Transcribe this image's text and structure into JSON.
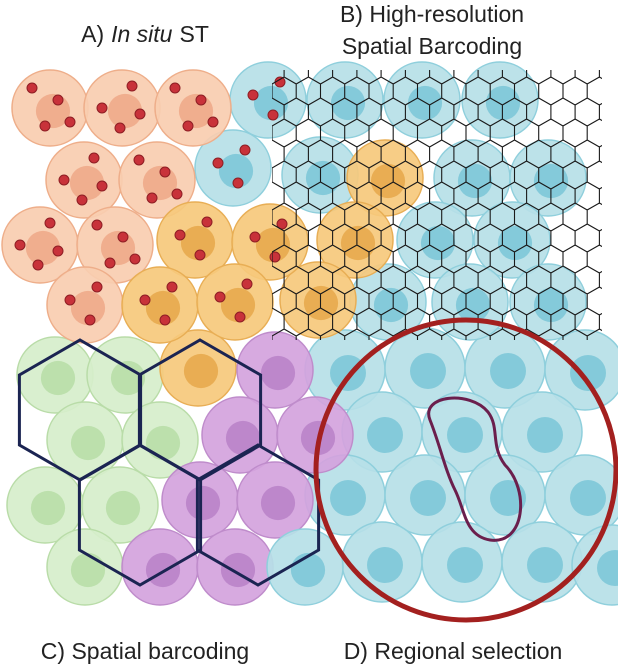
{
  "panel_a": {
    "prefix": "A)",
    "italic": "In situ",
    "suffix": "ST"
  },
  "panel_b": {
    "line1": "B) High-resolution",
    "line2": "Spatial Barcoding"
  },
  "panel_c": {
    "title": "C) Spatial barcoding"
  },
  "panel_d": {
    "title": "D) Regional selection"
  }
}
